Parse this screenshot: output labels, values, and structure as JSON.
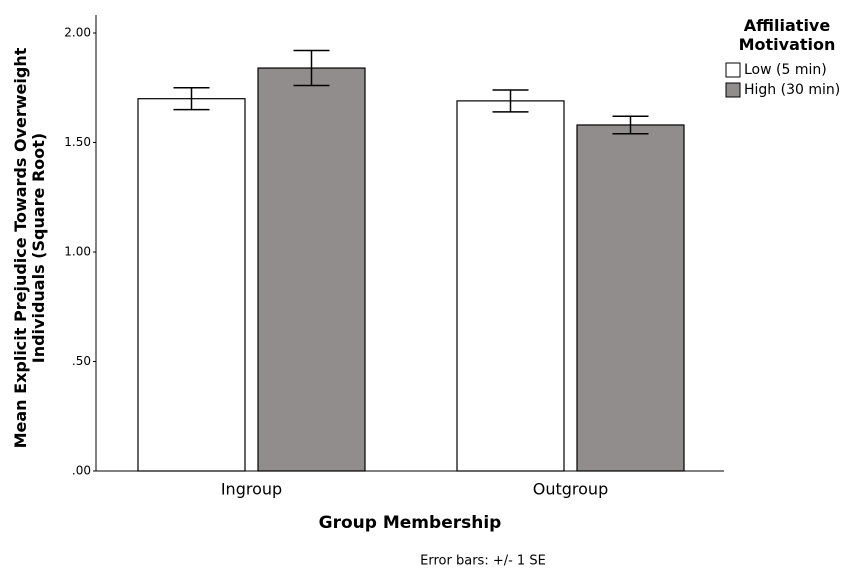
{
  "chart_data": {
    "type": "bar",
    "y_label": "Mean Explicit Prejudice Towards Overweight Individuals (Square Root)",
    "x_label": "Group Membership",
    "note": "Error bars: +/- 1 SE",
    "legend_title": "Affiliative Motivation",
    "legend_position": "top-right",
    "categories": [
      "Ingroup",
      "Outgroup"
    ],
    "series": [
      {
        "name": "Low (5 min)",
        "color": "#ffffff",
        "values": [
          1.7,
          1.69
        ],
        "errors": [
          0.05,
          0.05
        ]
      },
      {
        "name": "High (30 min)",
        "color": "#928d8d",
        "values": [
          1.84,
          1.58
        ],
        "errors": [
          0.08,
          0.04
        ]
      }
    ],
    "ylim": [
      0,
      2
    ],
    "yticks": [
      {
        "value": 0,
        "label": ".00"
      },
      {
        "value": 0.5,
        "label": ".50"
      },
      {
        "value": 1,
        "label": "1.00"
      },
      {
        "value": 1.5,
        "label": "1.50"
      },
      {
        "value": 2,
        "label": "2.00"
      }
    ]
  }
}
